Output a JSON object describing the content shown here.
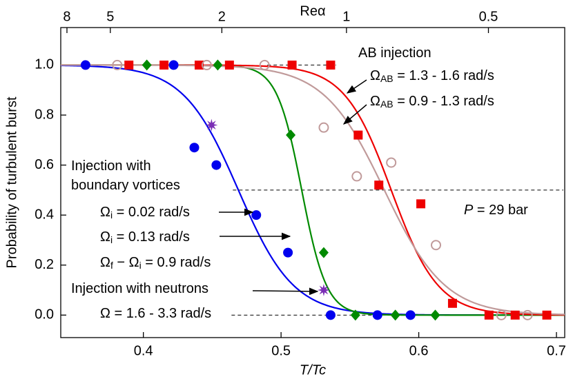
{
  "chart_data": {
    "type": "scatter",
    "xlabel": "T/Tc",
    "ylabel": "Probability of turbulent burst",
    "x2label": "Reα",
    "xlim": [
      0.34,
      0.706
    ],
    "ylim": [
      -0.09,
      1.15
    ],
    "xticks": [
      0.4,
      0.5,
      0.6,
      0.7
    ],
    "yticks": [
      {
        "value": 0,
        "label": "0.0"
      },
      0.2,
      0.4,
      0.6,
      0.8,
      {
        "value": 1,
        "label": "1.0"
      }
    ],
    "x2ticks": [
      {
        "value": 8,
        "x": 0.3445
      },
      {
        "value": 5,
        "x": 0.376
      },
      {
        "value": 2,
        "x": 0.457
      },
      {
        "value": 1,
        "x": 0.5475
      },
      {
        "value": 0.5,
        "x": 0.6506
      }
    ],
    "series": [
      {
        "color": "#0000ee",
        "marker": "circle",
        "x": [
          0.358,
          0.422,
          0.437,
          0.453,
          0.482,
          0.505,
          0.536,
          0.57,
          0.594
        ],
        "y": [
          1,
          1,
          0.67,
          0.6,
          0.4,
          0.25,
          0,
          0,
          0
        ]
      },
      {
        "color": "#008a00",
        "marker": "diamond",
        "x": [
          0.4025,
          0.454,
          0.507,
          0.531,
          0.554,
          0.583,
          0.612
        ],
        "y": [
          1,
          1,
          0.72,
          0.25,
          0,
          0,
          0
        ]
      },
      {
        "color": "#ee0000",
        "marker": "square",
        "x": [
          0.3895,
          0.415,
          0.4405,
          0.4625,
          0.508,
          0.536,
          0.556,
          0.571,
          0.6015,
          0.6245,
          0.651,
          0.67,
          0.693
        ],
        "y": [
          1,
          1,
          1,
          1,
          1,
          1,
          0.72,
          0.52,
          0.445,
          0.047,
          0,
          0,
          0
        ]
      },
      {
        "color": "#c09a9a",
        "marker": "open-circle",
        "x": [
          0.381,
          0.446,
          0.488,
          0.531,
          0.555,
          0.58,
          0.6125,
          0.66,
          0.679
        ],
        "y": [
          1,
          1,
          1,
          0.75,
          0.555,
          0.61,
          0.28,
          0,
          0
        ]
      },
      {
        "color": "#7b2fb5",
        "marker": "star",
        "x": [
          0.4495,
          0.531
        ],
        "y": [
          0.76,
          0.1
        ]
      }
    ],
    "fits": [
      {
        "color": "#0000ee",
        "center": 0.469,
        "width": 0.02
      },
      {
        "color": "#008a00",
        "center": 0.515,
        "width": 0.009
      },
      {
        "color": "#ee0000",
        "center": 0.58,
        "width": 0.017
      },
      {
        "color": "#c09a9a",
        "center": 0.575,
        "width": 0.022
      }
    ],
    "reference_lines": [
      {
        "y": 1,
        "x": [
          0.49,
          0.54
        ]
      },
      {
        "y": 0.5,
        "x": [
          0.465,
          0.705
        ]
      },
      {
        "y": 0,
        "x": [
          0.464,
          0.62
        ]
      }
    ],
    "annotations": [
      [
        {
          "text": "AB injection"
        }
      ],
      [
        {
          "text": "Ω"
        },
        {
          "text": "AB",
          "sub": true
        },
        {
          "text": " = 1.3 - 1.6 rad/s"
        }
      ],
      [
        {
          "text": "Ω"
        },
        {
          "text": "AB",
          "sub": true
        },
        {
          "text": " = 0.9 - 1.3 rad/s"
        }
      ],
      [
        {
          "text": "Injection with"
        }
      ],
      [
        {
          "text": "boundary vortices"
        }
      ],
      [
        {
          "text": "Ω"
        },
        {
          "text": "i",
          "sub": true
        },
        {
          "text": " = 0.02 rad/s"
        }
      ],
      [
        {
          "text": "Ω"
        },
        {
          "text": "i",
          "sub": true
        },
        {
          "text": " = 0.13 rad/s"
        }
      ],
      [
        {
          "text": "Ω"
        },
        {
          "text": "f",
          "sub": true
        },
        {
          "text": " − Ω"
        },
        {
          "text": "i",
          "sub": true
        },
        {
          "text": " = 0.9 rad/s"
        }
      ],
      [
        {
          "text": "Injection with neutrons"
        }
      ],
      [
        {
          "text": "Ω = 1.6 - 3.3 rad/s"
        }
      ],
      [
        {
          "text": "P",
          "italic": true
        },
        {
          "text": " = 29 bar"
        }
      ]
    ]
  }
}
